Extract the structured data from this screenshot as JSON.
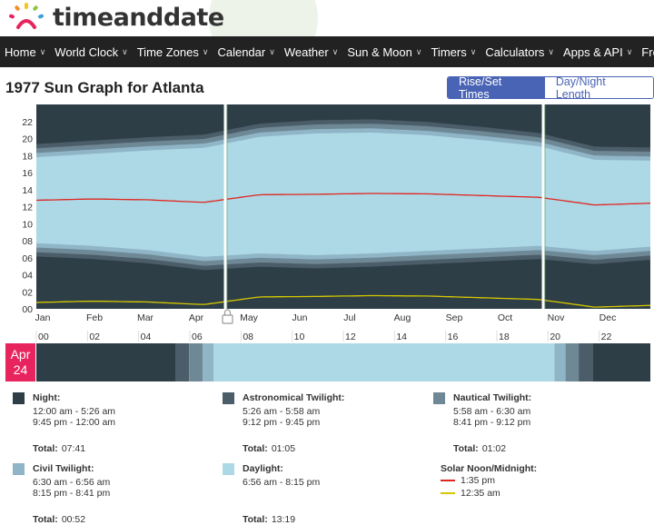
{
  "logo": {
    "text": "timeanddate"
  },
  "nav": {
    "items": [
      {
        "label": "Home"
      },
      {
        "label": "World Clock"
      },
      {
        "label": "Time Zones"
      },
      {
        "label": "Calendar"
      },
      {
        "label": "Weather"
      },
      {
        "label": "Sun & Moon"
      },
      {
        "label": "Timers"
      },
      {
        "label": "Calculators"
      },
      {
        "label": "Apps & API"
      },
      {
        "label": "Free Fun"
      }
    ]
  },
  "page": {
    "title": "1977 Sun Graph for Atlanta"
  },
  "view_toggle": {
    "active": "Rise/Set Times",
    "inactive": "Day/Night Length"
  },
  "colors": {
    "night": "#2e3e47",
    "astro": "#4b5d68",
    "nautical": "#6f8896",
    "civil": "#8fb5c7",
    "daylight": "#add8e6",
    "solar_noon": "#e0261e",
    "solar_midnight": "#d6c800",
    "accent": "#4a64b5",
    "badge": "#e8245e"
  },
  "chart_data": {
    "type": "area",
    "y_ticks": [
      "22",
      "20",
      "18",
      "16",
      "14",
      "12",
      "10",
      "08",
      "06",
      "04",
      "02",
      "00"
    ],
    "months": [
      "Jan",
      "Feb",
      "Mar",
      "Apr",
      "May",
      "Jun",
      "Jul",
      "Aug",
      "Sep",
      "Oct",
      "Nov",
      "Dec"
    ],
    "y_range": [
      0,
      24
    ],
    "dst": {
      "start": "Apr 24",
      "end": "Oct 30"
    },
    "sunrise_hours_monthly": [
      7.7,
      7.4,
      6.9,
      6.1,
      6.5,
      6.3,
      6.5,
      6.8,
      7.1,
      7.4,
      6.8,
      7.3
    ],
    "sunset_hours_monthly": [
      17.8,
      18.2,
      18.6,
      18.9,
      20.2,
      20.6,
      20.7,
      20.4,
      19.8,
      19.1,
      17.5,
      17.4
    ],
    "solar_noon_hours_monthly": [
      12.75,
      12.9,
      12.8,
      12.5,
      13.4,
      13.45,
      13.55,
      13.5,
      13.3,
      13.1,
      12.2,
      12.4
    ]
  },
  "day_bar": {
    "date_month": "Apr",
    "date_day": "24",
    "hour_labels": [
      "00",
      "02",
      "04",
      "06",
      "08",
      "10",
      "12",
      "14",
      "16",
      "18",
      "20",
      "22"
    ]
  },
  "legend": {
    "night": {
      "name": "Night:",
      "line1": "12:00 am - 5:26 am",
      "line2": "9:45 pm - 12:00 am",
      "total_label": "Total:",
      "total": "07:41"
    },
    "astro": {
      "name": "Astronomical Twilight:",
      "line1": "5:26 am - 5:58 am",
      "line2": "9:12 pm - 9:45 pm",
      "total_label": "Total:",
      "total": "01:05"
    },
    "nautical": {
      "name": "Nautical Twilight:",
      "line1": "5:58 am - 6:30 am",
      "line2": "8:41 pm - 9:12 pm",
      "total_label": "Total:",
      "total": "01:02"
    },
    "civil": {
      "name": "Civil Twilight:",
      "line1": "6:30 am - 6:56 am",
      "line2": "8:15 pm - 8:41 pm",
      "total_label": "Total:",
      "total": "00:52"
    },
    "daylight": {
      "name": "Daylight:",
      "line1": "6:56 am - 8:15 pm",
      "total_label": "Total:",
      "total": "13:19"
    },
    "solar": {
      "name": "Solar Noon/Midnight:",
      "noon": "1:35 pm",
      "midnight": "12:35 am"
    }
  }
}
